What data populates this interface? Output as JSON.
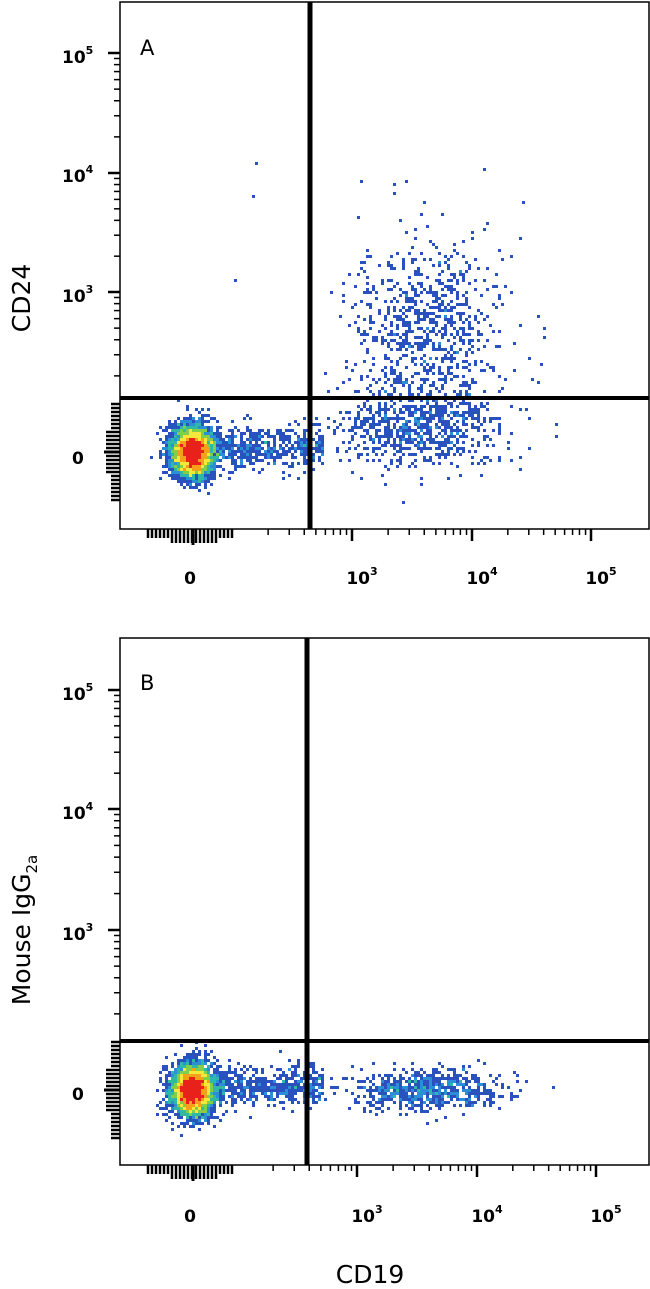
{
  "chart_data": [
    {
      "type": "scatter",
      "panel_label": "A",
      "ylabel": "CD24",
      "ylabel_subscript": "",
      "xlabel": "",
      "x_tick_labels": [
        {
          "base": "0",
          "exp": ""
        },
        {
          "base": "10",
          "exp": "3"
        },
        {
          "base": "10",
          "exp": "4"
        },
        {
          "base": "10",
          "exp": "5"
        }
      ],
      "y_tick_labels": [
        {
          "base": "0",
          "exp": ""
        },
        {
          "base": "10",
          "exp": "3"
        },
        {
          "base": "10",
          "exp": "4"
        },
        {
          "base": "10",
          "exp": "5"
        }
      ],
      "x_scale": "biexponential",
      "y_scale": "biexponential",
      "gates": {
        "x": 400,
        "y": 150
      },
      "populations": [
        {
          "name": "",
          "x_center": 0,
          "y_center": 0,
          "density": "very high",
          "color_scale": "red-yellow-green-blue"
        },
        {
          "name": "",
          "x_center": 3500,
          "y_center": 60,
          "density": "medium",
          "color_scale": "blue"
        },
        {
          "name": "",
          "x_center": 3500,
          "y_center": 800,
          "density": "medium",
          "color_scale": "blue"
        }
      ]
    },
    {
      "type": "scatter",
      "panel_label": "B",
      "ylabel": "Mouse IgG",
      "ylabel_subscript": "2a",
      "xlabel": "CD19",
      "x_tick_labels": [
        {
          "base": "0",
          "exp": ""
        },
        {
          "base": "10",
          "exp": "3"
        },
        {
          "base": "10",
          "exp": "4"
        },
        {
          "base": "10",
          "exp": "5"
        }
      ],
      "y_tick_labels": [
        {
          "base": "0",
          "exp": ""
        },
        {
          "base": "10",
          "exp": "3"
        },
        {
          "base": "10",
          "exp": "4"
        },
        {
          "base": "10",
          "exp": "5"
        }
      ],
      "x_scale": "biexponential",
      "y_scale": "biexponential",
      "gates": {
        "x": 400,
        "y": 150
      },
      "populations": [
        {
          "name": "",
          "x_center": 0,
          "y_center": 0,
          "density": "very high",
          "color_scale": "red-yellow-green-blue"
        },
        {
          "name": "",
          "x_center": 3500,
          "y_center": 0,
          "density": "medium",
          "color_scale": "blue"
        }
      ]
    }
  ]
}
